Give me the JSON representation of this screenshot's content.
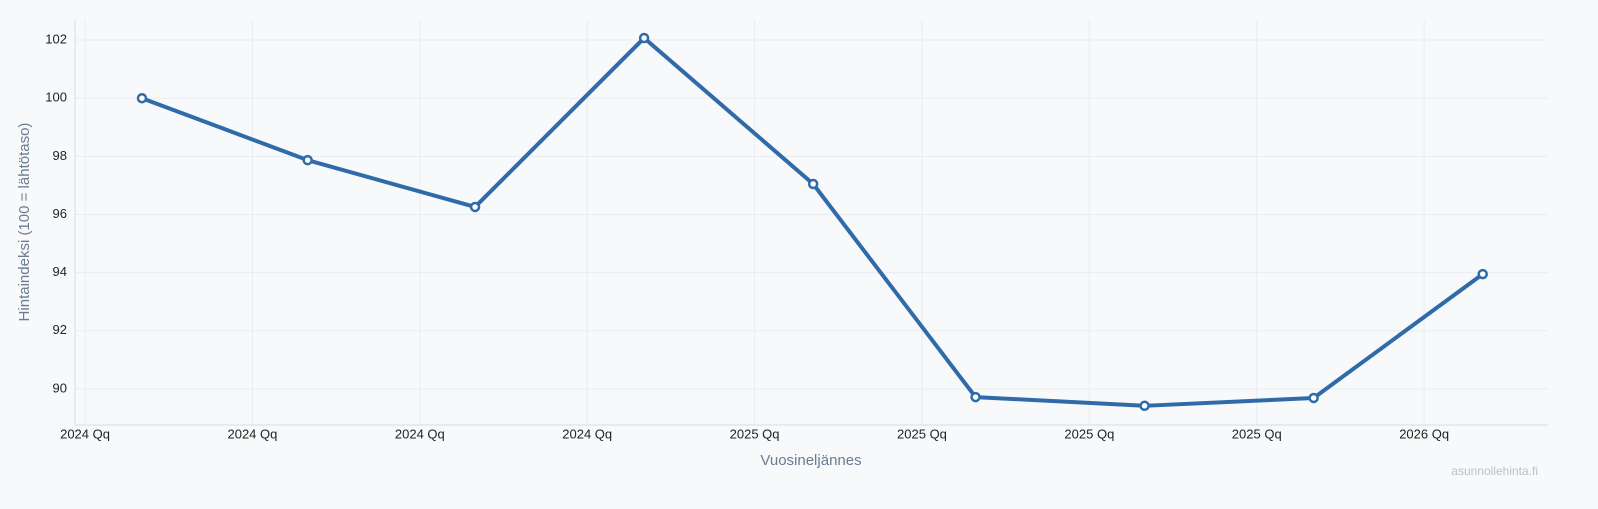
{
  "chart_data": {
    "type": "line",
    "x_label": "Vuosineljännes",
    "y_label": "Hintaindeksi (100 = lähtötaso)",
    "watermark": "asunnollehinta.fi",
    "x": [
      0.34,
      1.33,
      2.33,
      3.34,
      4.35,
      5.32,
      6.33,
      7.34,
      8.35
    ],
    "series": [
      {
        "name": "Hintaindeksi",
        "color": "#2f6ba8",
        "values": [
          100,
          97.87,
          96.26,
          102.07,
          97.05,
          89.72,
          89.42,
          89.69,
          93.95
        ]
      }
    ],
    "xlim": [
      -0.06,
      8.74
    ],
    "xticks": [
      {
        "value": 0,
        "label": "2024 Qq"
      },
      {
        "value": 1,
        "label": "2024 Qq"
      },
      {
        "value": 2,
        "label": "2024 Qq"
      },
      {
        "value": 3,
        "label": "2024 Qq"
      },
      {
        "value": 4,
        "label": "2025 Qq"
      },
      {
        "value": 5,
        "label": "2025 Qq"
      },
      {
        "value": 6,
        "label": "2025 Qq"
      },
      {
        "value": 7,
        "label": "2025 Qq"
      },
      {
        "value": 8,
        "label": "2026 Qq"
      }
    ],
    "ylim": [
      88.76,
      102.69
    ],
    "yticks": [
      90,
      92,
      94,
      96,
      98,
      100,
      102
    ],
    "grid": true
  }
}
